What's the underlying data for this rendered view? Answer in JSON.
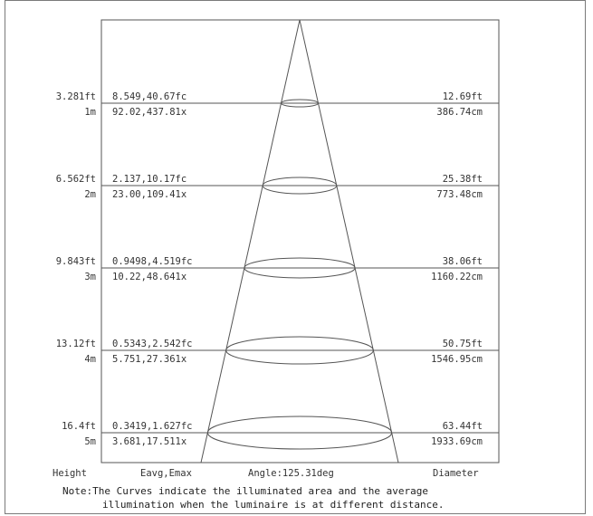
{
  "rows": [
    {
      "height_ft": "3.281ft",
      "height_m": "1m",
      "fc": "8.549,40.67fc",
      "lx": "92.02,437.81x",
      "diam_ft": "12.69ft",
      "diam_cm": "386.74cm"
    },
    {
      "height_ft": "6.562ft",
      "height_m": "2m",
      "fc": "2.137,10.17fc",
      "lx": "23.00,109.41x",
      "diam_ft": "25.38ft",
      "diam_cm": "773.48cm"
    },
    {
      "height_ft": "9.843ft",
      "height_m": "3m",
      "fc": "0.9498,4.519fc",
      "lx": "10.22,48.641x",
      "diam_ft": "38.06ft",
      "diam_cm": "1160.22cm"
    },
    {
      "height_ft": "13.12ft",
      "height_m": "4m",
      "fc": "0.5343,2.542fc",
      "lx": "5.751,27.361x",
      "diam_ft": "50.75ft",
      "diam_cm": "1546.95cm"
    },
    {
      "height_ft": "16.4ft",
      "height_m": "5m",
      "fc": "0.3419,1.627fc",
      "lx": "3.681,17.511x",
      "diam_ft": "63.44ft",
      "diam_cm": "1933.69cm"
    }
  ],
  "footer": {
    "height": "Height",
    "eavg": "Eavg,Emax",
    "angle": "Angle:125.31deg",
    "diameter": "Diameter"
  },
  "note": {
    "line1": "Note:The Curves indicate the illuminated area and the average",
    "line2": "illumination when the luminaire is at different distance."
  },
  "colors": {
    "line": "#555555",
    "frame": "#7a7a7a",
    "text": "#333333"
  }
}
